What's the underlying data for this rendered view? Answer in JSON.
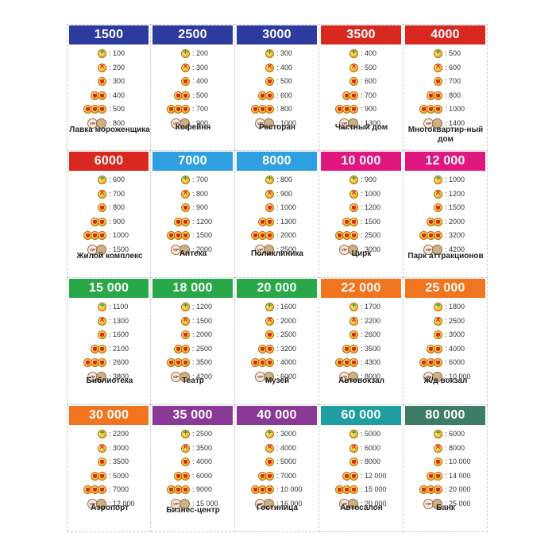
{
  "colors": [
    "#2e3b9e",
    "#d8281f",
    "#2e9fe0",
    "#e0177f",
    "#29a84a",
    "#f1741f",
    "#1e9ea0",
    "#8a3a96",
    "#3d7d66"
  ],
  "vip_label": "VIP",
  "cards": [
    {
      "price": "1500",
      "color": "#2e3b9e",
      "name": "Лавка мороженщика",
      "values": [
        ": 100",
        ": 200",
        ": 300",
        ": 400",
        ": 500",
        ": 800"
      ]
    },
    {
      "price": "2500",
      "color": "#2e3b9e",
      "name": "Кофейня",
      "values": [
        ": 200",
        ": 300",
        ": 400",
        ": 500",
        ": 700",
        ": 900"
      ]
    },
    {
      "price": "3000",
      "color": "#2e3b9e",
      "name": "Ресторан",
      "values": [
        ": 300",
        ": 400",
        ": 500",
        ": 600",
        ": 800",
        ": 1000"
      ]
    },
    {
      "price": "3500",
      "color": "#d8281f",
      "name": "Частный дом",
      "values": [
        ": 400",
        ": 500",
        ": 600",
        ": 700",
        ": 900",
        ": 1300"
      ]
    },
    {
      "price": "4000",
      "color": "#d8281f",
      "name": "Многоквартир-ный дом",
      "values": [
        ": 500",
        ": 600",
        ": 700",
        ": 800",
        ": 1000",
        ": 1400"
      ]
    },
    {
      "price": "6000",
      "color": "#d8281f",
      "name": "Жилой комплекс",
      "values": [
        ": 600",
        ": 700",
        ": 800",
        ": 900",
        ": 1000",
        ": 1500"
      ]
    },
    {
      "price": "7000",
      "color": "#2e9fe0",
      "name": "Аптека",
      "values": [
        ": 700",
        ": 800",
        ": 900",
        ": 1200",
        ": 1500",
        ": 2000"
      ]
    },
    {
      "price": "8000",
      "color": "#2e9fe0",
      "name": "Поликлиника",
      "values": [
        ": 800",
        ": 900",
        ": 1000",
        ": 1300",
        ": 2000",
        ": 2500"
      ]
    },
    {
      "price": "10 000",
      "color": "#e0177f",
      "name": "Цирк",
      "values": [
        ": 900",
        ": 1000",
        ": 1200",
        ": 1500",
        ": 2500",
        ": 3000"
      ]
    },
    {
      "price": "12 000",
      "color": "#e0177f",
      "name": "Парк аттракционов",
      "values": [
        ": 1000",
        ": 1200",
        ": 1500",
        ": 2000",
        ": 3200",
        ": 4200"
      ]
    },
    {
      "price": "15 000",
      "color": "#29a84a",
      "name": "Библиотека",
      "values": [
        ": 1100",
        ": 1300",
        ": 1600",
        ": 2100",
        ": 2600",
        ": 3800"
      ]
    },
    {
      "price": "18 000",
      "color": "#29a84a",
      "name": "Театр",
      "values": [
        ": 1200",
        ": 1500",
        ": 2000",
        ": 2500",
        ": 3500",
        ": 4200"
      ]
    },
    {
      "price": "20 000",
      "color": "#29a84a",
      "name": "Музей",
      "values": [
        ": 1600",
        ": 2000",
        ": 2500",
        ": 3200",
        ": 4000",
        ": 6000"
      ]
    },
    {
      "price": "22 000",
      "color": "#f1741f",
      "name": "Автовокзал",
      "values": [
        ": 1700",
        ": 2200",
        ": 2600",
        ": 3500",
        ": 4300",
        ": 8000"
      ]
    },
    {
      "price": "25 000",
      "color": "#f1741f",
      "name": "Ж/д вокзал",
      "values": [
        ": 1800",
        ": 2500",
        ": 3000",
        ": 4000",
        ": 6000",
        ": 10 000"
      ]
    },
    {
      "price": "30 000",
      "color": "#f1741f",
      "name": "Аэропорт",
      "values": [
        ": 2200",
        ": 3000",
        ": 3500",
        ": 5000",
        ": 7000",
        ": 12 000"
      ]
    },
    {
      "price": "35 000",
      "color": "#8a3a96",
      "name": "Бизнес-центр",
      "values": [
        ": 2500",
        ": 3500",
        ": 4000",
        ": 6000",
        ": 9000",
        ": 15 000"
      ]
    },
    {
      "price": "40 000",
      "color": "#8a3a96",
      "name": "Гостиница",
      "values": [
        ": 3000",
        ": 4000",
        ": 5000",
        ": 7000",
        ": 10 000",
        ": 16 000"
      ]
    },
    {
      "price": "60 000",
      "color": "#1e9ea0",
      "name": "Автосалон",
      "values": [
        ": 5000",
        ": 6000",
        ": 8000",
        ": 12 000",
        ": 15 000",
        ": 20 000"
      ]
    },
    {
      "price": "80 000",
      "color": "#3d7d66",
      "name": "Банк",
      "values": [
        ": 6000",
        ": 8000",
        ": 10 000",
        ": 14 000",
        ": 20 000",
        ": 25 000"
      ]
    }
  ]
}
